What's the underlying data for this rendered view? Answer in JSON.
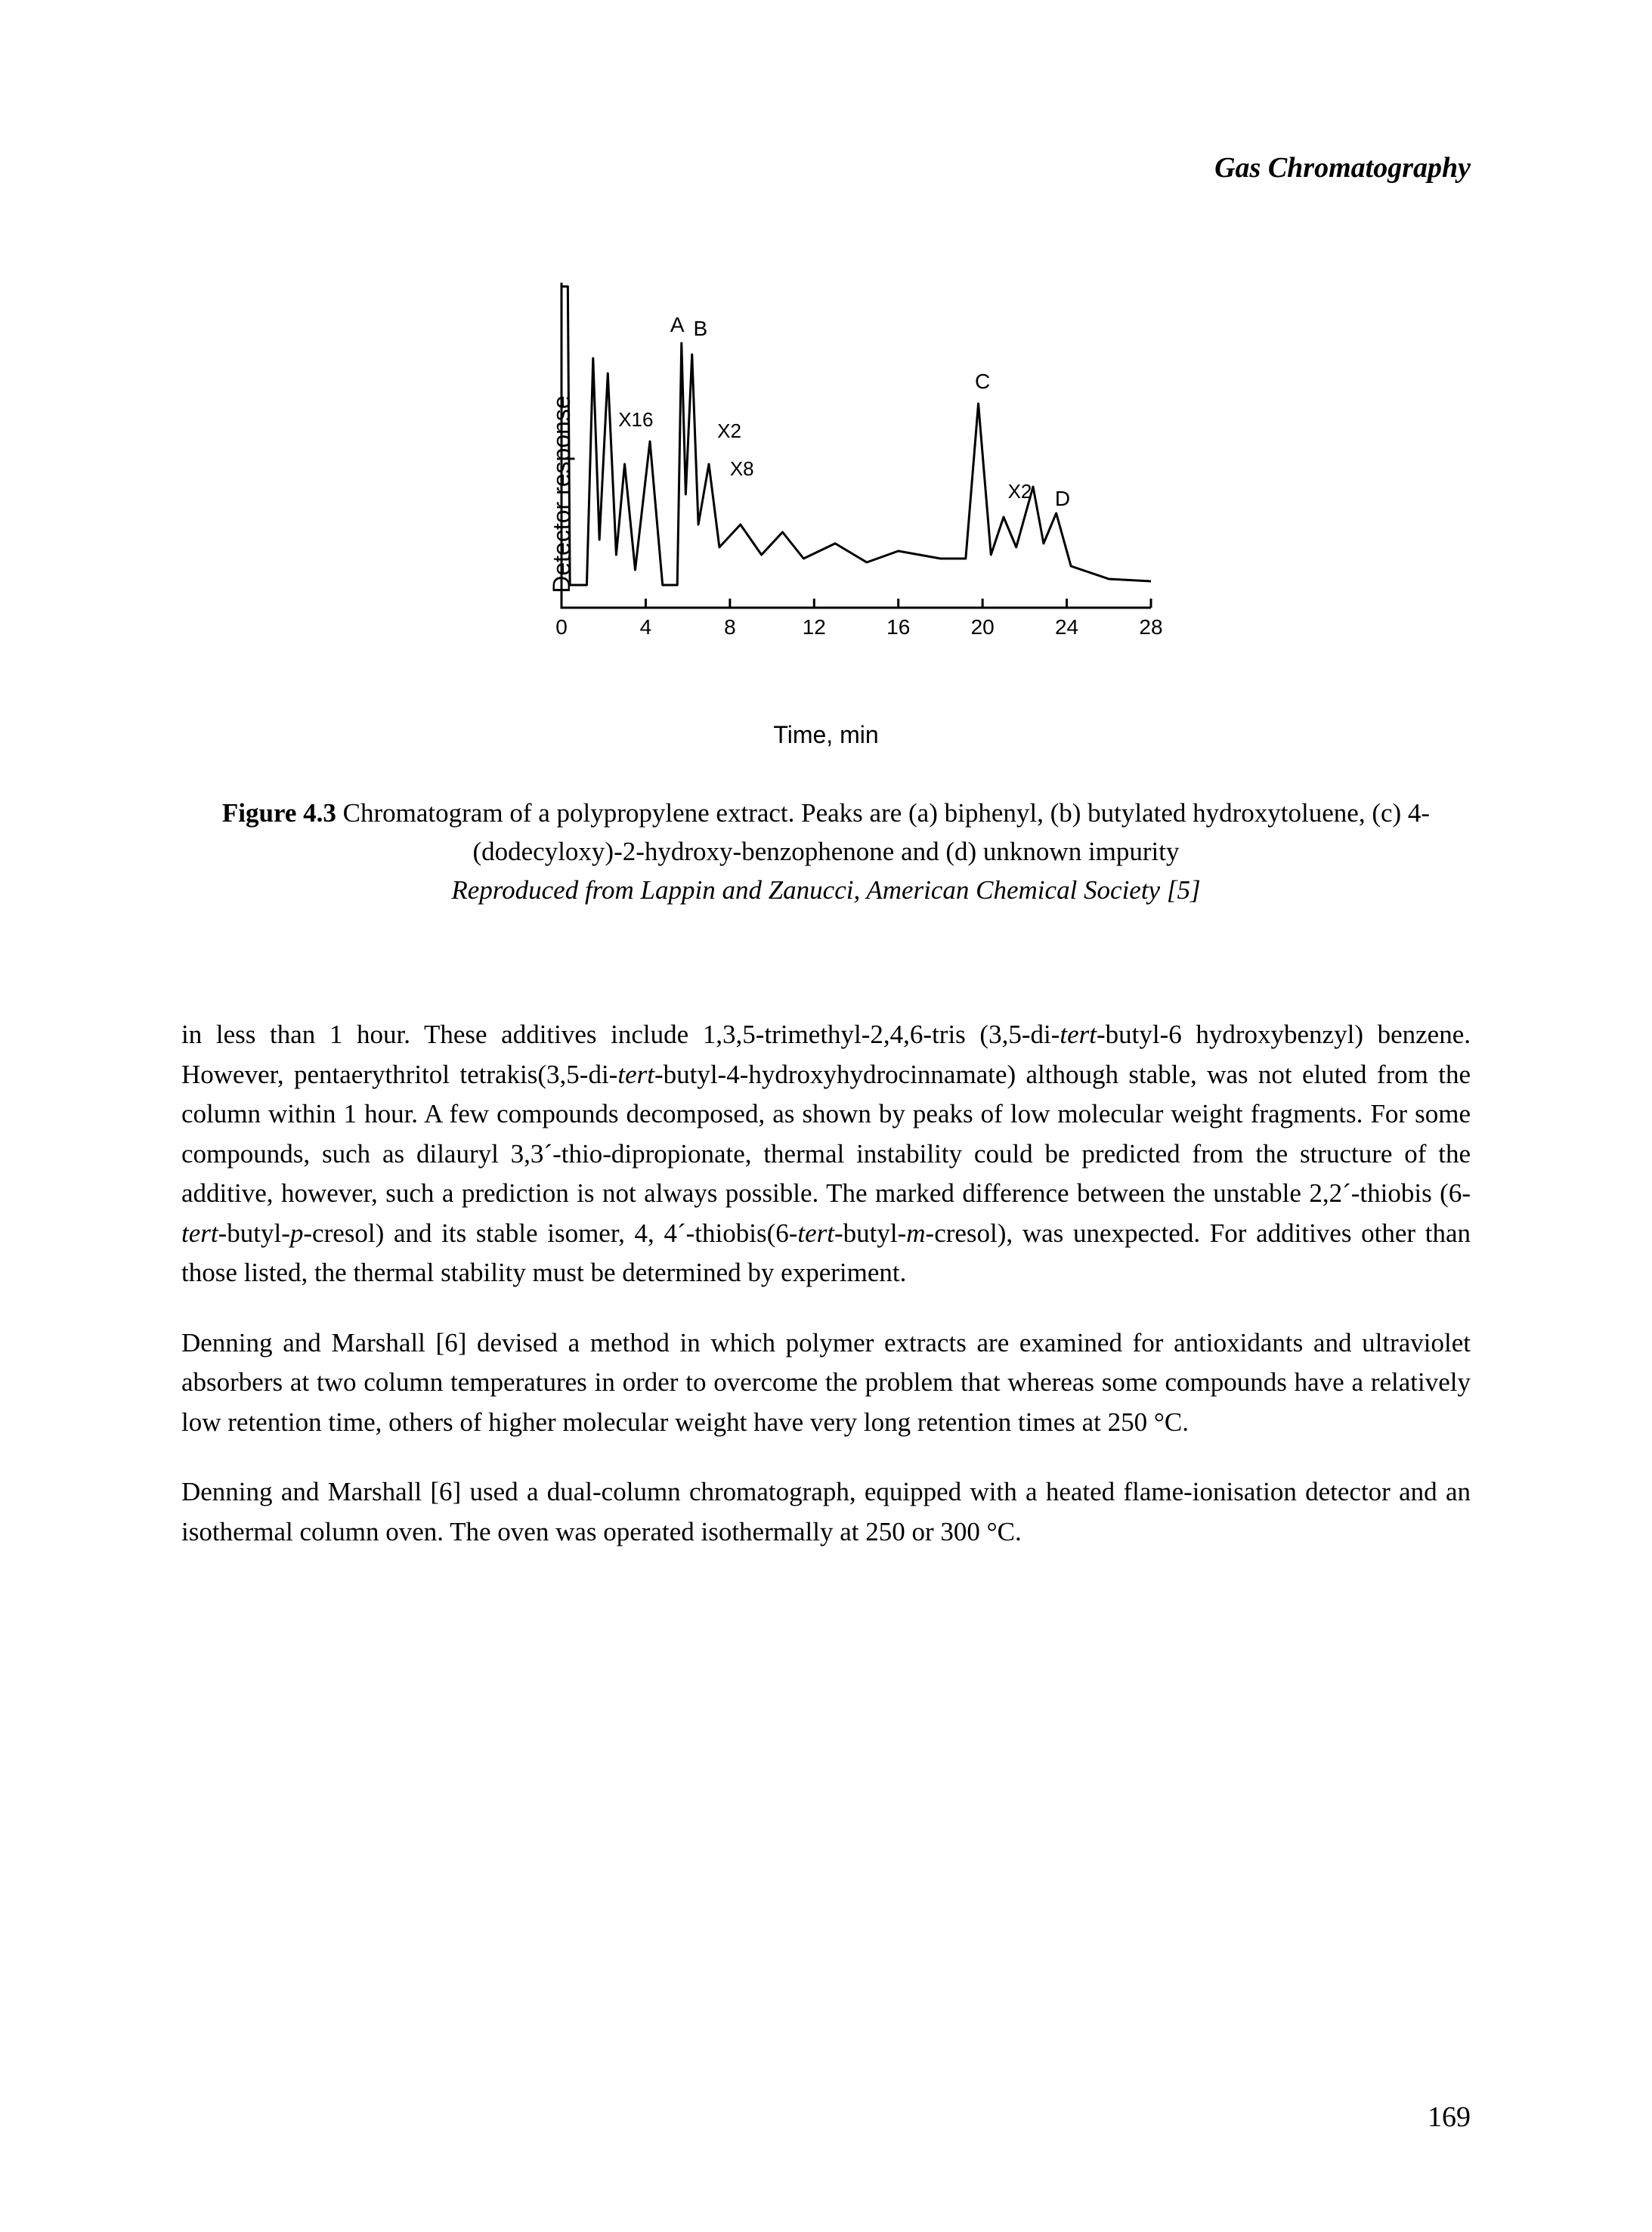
{
  "running_head": "Gas Chromatography",
  "figure": {
    "type": "chromatogram",
    "y_axis_label": "Detector response",
    "x_axis_label": "Time, min",
    "x_ticks": [
      0,
      4,
      8,
      12,
      16,
      20,
      24,
      28
    ],
    "xlim": [
      0,
      28
    ],
    "peak_labels": [
      "A",
      "B",
      "C",
      "D"
    ],
    "scale_annotations": [
      "X16",
      "X2",
      "X8",
      "X2"
    ],
    "line_color": "#000000",
    "line_width": 3,
    "background_color": "#ffffff",
    "axis_color": "#000000",
    "label_fontsize": 28,
    "tick_fontsize": 28,
    "font_family": "Arial"
  },
  "caption": {
    "label": "Figure 4.3",
    "text_1": " Chromatogram of a polypropylene extract. Peaks are (a) biphenyl, (b) butylated hydroxytoluene, (c) 4-(dodecyloxy)-2-hydroxy-benzophenone and (d) unknown impurity",
    "text_2_italic": "Reproduced from Lappin and Zanucci, American Chemical Society [5]"
  },
  "body": {
    "p1_a": "in less than 1 hour. These additives include 1,3,5-trimethyl-2,4,6-tris (3,5-di-",
    "p1_i1": "tert",
    "p1_b": "-butyl-6 hydroxybenzyl) benzene. However, pentaerythritol tetrakis(3,5-di-",
    "p1_i2": "tert",
    "p1_c": "-butyl-4-hydroxyhydrocinnamate) although stable, was not eluted from the column within 1 hour. A few compounds decomposed, as shown by peaks of low molecular weight fragments. For some compounds, such as dilauryl 3,3´-thio-dipropionate, thermal instability could be predicted from the structure of the additive, however, such a prediction is not always possible. The marked difference between the unstable 2,2´-thiobis (6-",
    "p1_i3": "tert",
    "p1_d": "-butyl-",
    "p1_i4": "p",
    "p1_e": "-cresol) and its stable isomer, 4, 4´-thiobis(6-",
    "p1_i5": "tert",
    "p1_f": "-butyl-",
    "p1_i6": "m",
    "p1_g": "-cresol), was unexpected. For additives other than those listed, the thermal stability must be determined by experiment.",
    "p2": "Denning and Marshall [6] devised a method in which polymer extracts are examined for antioxidants and ultraviolet absorbers at two column temperatures in order to overcome the problem that whereas some compounds have a relatively low retention time, others of higher molecular weight have very long retention times at 250 °C.",
    "p3": "Denning and Marshall [6] used a dual-column chromatograph, equipped with a heated flame-ionisation detector and an isothermal column oven. The oven was operated isothermally at 250 or 300 °C."
  },
  "page_number": "169"
}
